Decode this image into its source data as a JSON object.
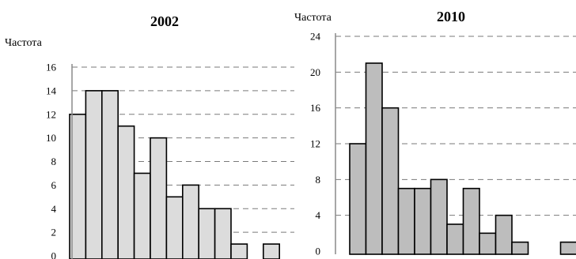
{
  "chart_data": [
    {
      "type": "bar",
      "title": "2002",
      "ylabel": "Частота",
      "xlabel": "",
      "ylim": [
        0,
        16
      ],
      "yticks": [
        0,
        2,
        4,
        6,
        8,
        10,
        12,
        14,
        16
      ],
      "grid": "dashed-horizontal",
      "bar_fill": "#dcdcdc",
      "values": [
        12,
        14,
        14,
        11,
        7,
        10,
        5,
        6,
        4,
        4,
        1,
        0,
        1
      ]
    },
    {
      "type": "bar",
      "title": "2010",
      "ylabel": "Частота",
      "xlabel": "",
      "ylim": [
        0,
        24
      ],
      "yticks": [
        0,
        4,
        8,
        12,
        16,
        20,
        24
      ],
      "grid": "dashed-horizontal",
      "bar_fill": "#bdbdbd",
      "values": [
        12,
        21,
        16,
        7,
        7,
        8,
        3,
        7,
        2,
        4,
        1,
        0,
        0,
        1
      ]
    }
  ]
}
